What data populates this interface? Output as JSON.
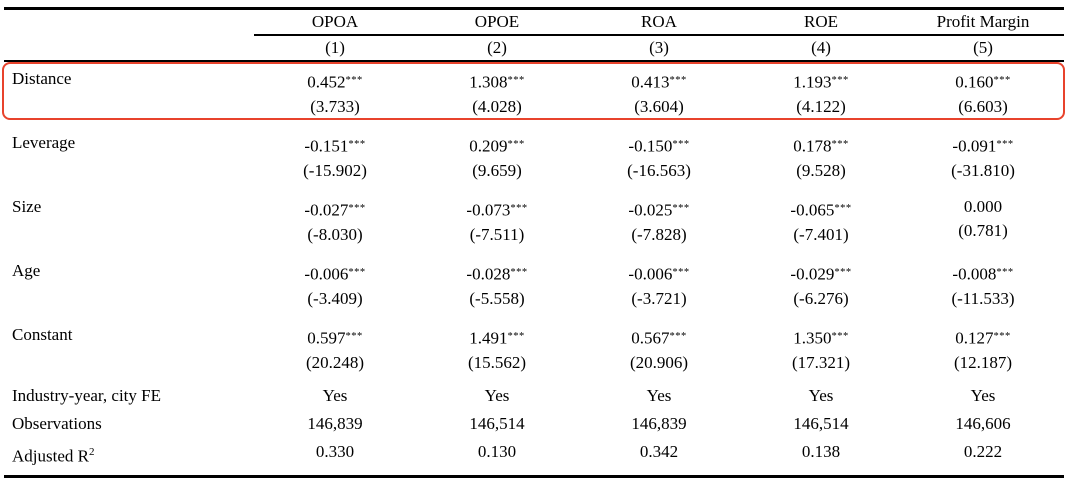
{
  "page": {
    "background": "#ffffff",
    "text_color": "#000000"
  },
  "highlight": {
    "color": "#e8432c",
    "annotated_row": "Distance"
  },
  "table": {
    "columns": [
      "OPOA",
      "OPOE",
      "ROA",
      "ROE",
      "Profit Margin"
    ],
    "column_numbers": [
      "(1)",
      "(2)",
      "(3)",
      "(4)",
      "(5)"
    ],
    "coefficient_rows": [
      {
        "label": "Distance",
        "highlighted": true,
        "cells": [
          {
            "coef": "0.452",
            "stars": "***",
            "tstat": "(3.733)"
          },
          {
            "coef": "1.308",
            "stars": "***",
            "tstat": "(4.028)"
          },
          {
            "coef": "0.413",
            "stars": "***",
            "tstat": "(3.604)"
          },
          {
            "coef": "1.193",
            "stars": "***",
            "tstat": "(4.122)"
          },
          {
            "coef": "0.160",
            "stars": "***",
            "tstat": "(6.603)"
          }
        ]
      },
      {
        "label": "Leverage",
        "highlighted": false,
        "cells": [
          {
            "coef": "-0.151",
            "stars": "***",
            "tstat": "(-15.902)"
          },
          {
            "coef": "0.209",
            "stars": "***",
            "tstat": "(9.659)"
          },
          {
            "coef": "-0.150",
            "stars": "***",
            "tstat": "(-16.563)"
          },
          {
            "coef": "0.178",
            "stars": "***",
            "tstat": "(9.528)"
          },
          {
            "coef": "-0.091",
            "stars": "***",
            "tstat": "(-31.810)"
          }
        ]
      },
      {
        "label": "Size",
        "highlighted": false,
        "cells": [
          {
            "coef": "-0.027",
            "stars": "***",
            "tstat": "(-8.030)"
          },
          {
            "coef": "-0.073",
            "stars": "***",
            "tstat": "(-7.511)"
          },
          {
            "coef": "-0.025",
            "stars": "***",
            "tstat": "(-7.828)"
          },
          {
            "coef": "-0.065",
            "stars": "***",
            "tstat": "(-7.401)"
          },
          {
            "coef": "0.000",
            "stars": "",
            "tstat": "(0.781)"
          }
        ]
      },
      {
        "label": "Age",
        "highlighted": false,
        "cells": [
          {
            "coef": "-0.006",
            "stars": "***",
            "tstat": "(-3.409)"
          },
          {
            "coef": "-0.028",
            "stars": "***",
            "tstat": "(-5.558)"
          },
          {
            "coef": "-0.006",
            "stars": "***",
            "tstat": "(-3.721)"
          },
          {
            "coef": "-0.029",
            "stars": "***",
            "tstat": "(-6.276)"
          },
          {
            "coef": "-0.008",
            "stars": "***",
            "tstat": "(-11.533)"
          }
        ]
      },
      {
        "label": "Constant",
        "highlighted": false,
        "cells": [
          {
            "coef": "0.597",
            "stars": "***",
            "tstat": "(20.248)"
          },
          {
            "coef": "1.491",
            "stars": "***",
            "tstat": "(15.562)"
          },
          {
            "coef": "0.567",
            "stars": "***",
            "tstat": "(20.906)"
          },
          {
            "coef": "1.350",
            "stars": "***",
            "tstat": "(17.321)"
          },
          {
            "coef": "0.127",
            "stars": "***",
            "tstat": "(12.187)"
          }
        ]
      }
    ],
    "info_rows": [
      {
        "label": "Industry-year, city FE",
        "label_sup": "",
        "values": [
          "Yes",
          "Yes",
          "Yes",
          "Yes",
          "Yes"
        ]
      },
      {
        "label": "Observations",
        "label_sup": "",
        "values": [
          "146,839",
          "146,514",
          "146,839",
          "146,514",
          "146,606"
        ]
      },
      {
        "label": "Adjusted R",
        "label_sup": "2",
        "values": [
          "0.330",
          "0.130",
          "0.342",
          "0.138",
          "0.222"
        ]
      }
    ]
  }
}
